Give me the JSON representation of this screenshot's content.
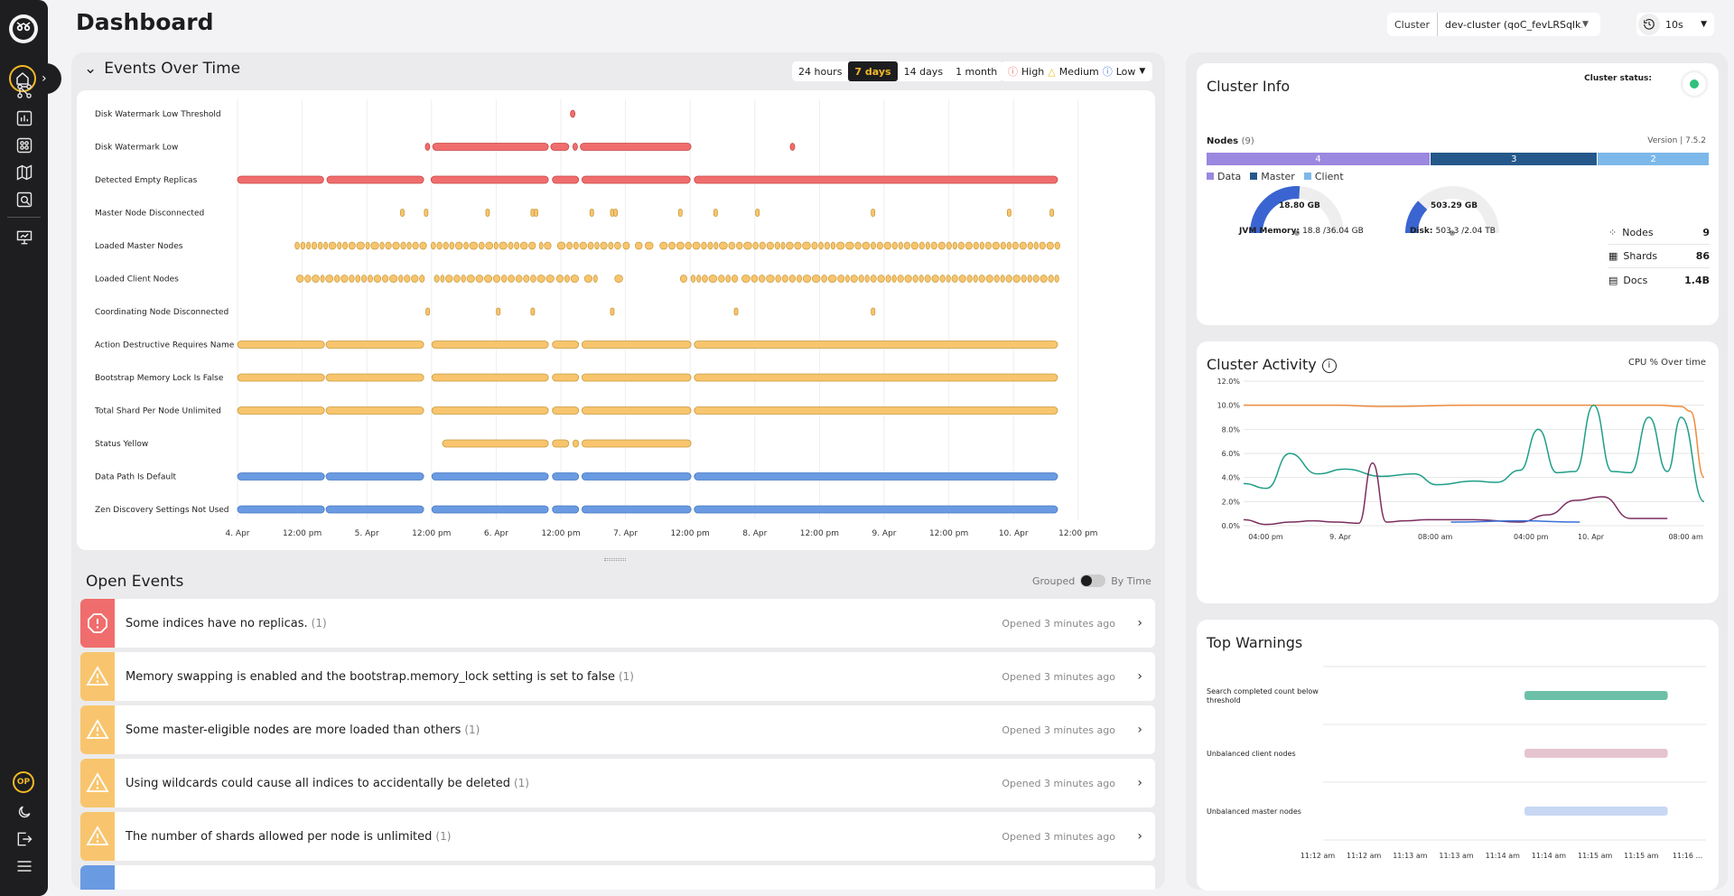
{
  "page_title": "Dashboard",
  "cluster": {
    "label": "Cluster",
    "value": "dev-cluster (qoC_fevLRSqlk..."
  },
  "refresh": {
    "value": "10s"
  },
  "events_over_time": {
    "title": "Events Over Time",
    "ranges": [
      "24 hours",
      "7 days",
      "14 days",
      "1 month"
    ],
    "active_range": "7 days",
    "severity": {
      "high": "High",
      "medium": "Medium",
      "low": "Low"
    },
    "colors": {
      "high": "#f06d6d",
      "medium": "#f8c56e",
      "low": "#6a9be2"
    },
    "tick_labels": [
      "4. Apr",
      "12:00 pm",
      "5. Apr",
      "12:00 pm",
      "6. Apr",
      "12:00 pm",
      "7. Apr",
      "12:00 pm",
      "8. Apr",
      "12:00 pm",
      "9. Apr",
      "12:00 pm",
      "10. Apr",
      "12:00 pm"
    ],
    "rows": [
      {
        "label": "Disk Watermark Low Threshold",
        "sev": "high",
        "spans": [
          [
            0.406,
            0.411
          ]
        ]
      },
      {
        "label": "Disk Watermark Low",
        "sev": "high",
        "spans": [
          [
            0.229,
            0.233
          ],
          [
            0.238,
            0.379
          ],
          [
            0.382,
            0.404
          ],
          [
            0.409,
            0.413
          ],
          [
            0.418,
            0.553
          ],
          [
            0.674,
            0.678
          ]
        ]
      },
      {
        "label": "Detected Empty Replicas",
        "sev": "high",
        "spans": [
          [
            0.0,
            0.105
          ],
          [
            0.109,
            0.227
          ],
          [
            0.236,
            0.379
          ],
          [
            0.384,
            0.416
          ],
          [
            0.42,
            0.552
          ],
          [
            0.557,
            1.0
          ]
        ]
      },
      {
        "label": "Master Node Disconnected",
        "sev": "medium",
        "dots": [
          0.201,
          0.23,
          0.305,
          0.36,
          0.364,
          0.432,
          0.457,
          0.461,
          0.54,
          0.583,
          0.634,
          0.775,
          0.941,
          0.993
        ]
      },
      {
        "label": "Loaded Master Nodes",
        "sev": "medium",
        "dense": [
          [
            0.07,
            0.228
          ],
          [
            0.236,
            0.365
          ],
          [
            0.368,
            0.383
          ],
          [
            0.39,
            0.462
          ],
          [
            0.47,
            0.478
          ],
          [
            0.485,
            0.49
          ],
          [
            0.497,
            0.502
          ],
          [
            0.515,
            0.659
          ],
          [
            0.663,
            1.0
          ]
        ]
      },
      {
        "label": "Loaded Client Nodes",
        "sev": "medium",
        "dense": [
          [
            0.072,
            0.227
          ],
          [
            0.24,
            0.379
          ],
          [
            0.389,
            0.41
          ],
          [
            0.423,
            0.437
          ],
          [
            0.46,
            0.464
          ],
          [
            0.54,
            0.544
          ],
          [
            0.553,
            0.605
          ],
          [
            0.615,
            1.0
          ]
        ]
      },
      {
        "label": "Coordinating Node Disconnected",
        "sev": "medium",
        "dots": [
          0.232,
          0.318,
          0.36,
          0.457,
          0.608,
          0.775
        ]
      },
      {
        "label": "Action Destructive Requires Name",
        "sev": "medium",
        "spans": [
          [
            0.0,
            0.106
          ],
          [
            0.108,
            0.227
          ],
          [
            0.237,
            0.379
          ],
          [
            0.384,
            0.416
          ],
          [
            0.42,
            0.553
          ],
          [
            0.557,
            1.0
          ]
        ]
      },
      {
        "label": "Bootstrap Memory Lock Is False",
        "sev": "medium",
        "spans": [
          [
            0.0,
            0.106
          ],
          [
            0.108,
            0.227
          ],
          [
            0.237,
            0.379
          ],
          [
            0.384,
            0.416
          ],
          [
            0.42,
            0.553
          ],
          [
            0.557,
            1.0
          ]
        ]
      },
      {
        "label": "Total Shard Per Node Unlimited",
        "sev": "medium",
        "spans": [
          [
            0.0,
            0.106
          ],
          [
            0.108,
            0.227
          ],
          [
            0.237,
            0.379
          ],
          [
            0.384,
            0.416
          ],
          [
            0.42,
            0.553
          ],
          [
            0.557,
            1.0
          ]
        ]
      },
      {
        "label": "Status Yellow",
        "sev": "medium",
        "spans": [
          [
            0.25,
            0.379
          ],
          [
            0.384,
            0.404
          ],
          [
            0.409,
            0.416
          ],
          [
            0.42,
            0.553
          ]
        ]
      },
      {
        "label": "Data Path Is Default",
        "sev": "low",
        "spans": [
          [
            0.0,
            0.106
          ],
          [
            0.108,
            0.227
          ],
          [
            0.237,
            0.379
          ],
          [
            0.384,
            0.416
          ],
          [
            0.42,
            0.553
          ],
          [
            0.557,
            1.0
          ]
        ]
      },
      {
        "label": "Zen Discovery Settings Not Used",
        "sev": "low",
        "spans": [
          [
            0.0,
            0.106
          ],
          [
            0.108,
            0.227
          ],
          [
            0.237,
            0.379
          ],
          [
            0.384,
            0.416
          ],
          [
            0.42,
            0.553
          ],
          [
            0.557,
            1.0
          ]
        ]
      }
    ]
  },
  "open_events": {
    "title": "Open Events",
    "toggle_left": "Grouped",
    "toggle_right": "By Time",
    "items": [
      {
        "severity": "high",
        "text": "Some indices have no replicas.",
        "count": "(1)",
        "opened": "Opened 3 minutes ago"
      },
      {
        "severity": "medium",
        "text": "Memory swapping is enabled and the bootstrap.memory_lock setting is set to false",
        "count": "(1)",
        "opened": "Opened 3 minutes ago"
      },
      {
        "severity": "medium",
        "text": "Some master-eligible nodes are more loaded than others",
        "count": "(1)",
        "opened": "Opened 3 minutes ago"
      },
      {
        "severity": "medium",
        "text": "Using wildcards could cause all indices to accidentally be deleted",
        "count": "(1)",
        "opened": "Opened 3 minutes ago"
      },
      {
        "severity": "medium",
        "text": "The number of shards allowed per node is unlimited",
        "count": "(1)",
        "opened": "Opened 3 minutes ago"
      },
      {
        "severity": "low",
        "text": "",
        "count": "",
        "opened": ""
      }
    ]
  },
  "cluster_info": {
    "title": "Cluster Info",
    "status_label": "Cluster status:",
    "status_color": "#2fc07d",
    "nodes_label": "Nodes",
    "nodes_count": "(9)",
    "version": "Version | 7.5.2",
    "node_types": [
      {
        "name": "Data",
        "count": 4,
        "color": "#9b88e0"
      },
      {
        "name": "Master",
        "count": 3,
        "color": "#25588a"
      },
      {
        "name": "Client",
        "count": 2,
        "color": "#7db8ea"
      }
    ],
    "jvm": {
      "center": "18.80 GB",
      "label": "JVM Memory:",
      "value": "18.8 /36.04 GB",
      "fraction": 0.52
    },
    "disk": {
      "center": "503.29 GB",
      "label": "Disk:",
      "value": "503.3 /2.04 TB",
      "fraction": 0.24
    },
    "stats": [
      {
        "name": "Nodes",
        "value": "9",
        "icon": "nodes-icon"
      },
      {
        "name": "Shards",
        "value": "86",
        "icon": "shards-icon"
      },
      {
        "name": "Docs",
        "value": "1.4B",
        "icon": "docs-icon"
      }
    ]
  },
  "cluster_activity": {
    "title": "Cluster Activity",
    "subtitle": "CPU % Over time",
    "chart_data": {
      "type": "line",
      "ylabel": "",
      "ylim": [
        0,
        12
      ],
      "y_ticks": [
        "12.0%",
        "10.0%",
        "8.0%",
        "6.0%",
        "4.0%",
        "2.0%",
        "0.0%"
      ],
      "x_tick_labels": [
        "04:00 pm",
        "9. Apr",
        "08:00 am",
        "04:00 pm",
        "10. Apr",
        "08:00 am"
      ],
      "x_tick_pos": [
        0.048,
        0.21,
        0.416,
        0.624,
        0.754,
        0.96
      ],
      "series": [
        {
          "color": "#ef8a3c",
          "x": [
            0,
            0.1,
            0.2,
            0.3,
            0.5,
            0.7,
            0.8,
            0.9,
            0.95,
            0.97,
            1.0
          ],
          "y": [
            10,
            10,
            10,
            9.9,
            10,
            10,
            10,
            10,
            9.9,
            9.5,
            4
          ]
        },
        {
          "color": "#1f9e88",
          "x": [
            0,
            0.05,
            0.1,
            0.16,
            0.22,
            0.3,
            0.37,
            0.42,
            0.5,
            0.55,
            0.6,
            0.64,
            0.68,
            0.72,
            0.76,
            0.8,
            0.84,
            0.88,
            0.92,
            0.95,
            1.0
          ],
          "y": [
            3.5,
            3.1,
            6,
            4.3,
            4.7,
            4.1,
            4.3,
            3.4,
            3.7,
            3.6,
            4.6,
            8,
            4.4,
            4.5,
            10,
            4.5,
            4.4,
            9,
            4.5,
            9,
            2
          ]
        },
        {
          "color": "#7b2d5e",
          "x": [
            0,
            0.05,
            0.1,
            0.15,
            0.2,
            0.25,
            0.28,
            0.31,
            0.35,
            0.4,
            0.5,
            0.6,
            0.66,
            0.72,
            0.78,
            0.84,
            0.88,
            0.92
          ],
          "y": [
            0.5,
            0.1,
            0.3,
            0.4,
            0.3,
            0.2,
            5.2,
            0.3,
            0.4,
            0.5,
            0.5,
            0.3,
            0.9,
            2.1,
            2.4,
            0.6,
            0.6,
            0.6
          ]
        },
        {
          "color": "#3a6fd8",
          "x": [
            0.45,
            0.6,
            0.73
          ],
          "y": [
            0.3,
            0.4,
            0.3
          ]
        }
      ]
    }
  },
  "top_warnings": {
    "title": "Top Warnings",
    "chart_data": {
      "type": "bar",
      "categories": [
        "Search completed count below threshold",
        "Unbalanced client nodes",
        "Unbalanced master nodes"
      ],
      "colors": [
        "#6dbfa8",
        "#e5c4d0",
        "#c8d8f3"
      ],
      "start": [
        0.526,
        0.526,
        0.526
      ],
      "end": [
        0.9,
        0.9,
        0.9
      ],
      "x_tick_labels": [
        "11:12 am",
        "11:12 am",
        "11:13 am",
        "11:13 am",
        "11:14 am",
        "11:14 am",
        "11:15 am",
        "11:15 am",
        "11:16 ..."
      ]
    }
  }
}
